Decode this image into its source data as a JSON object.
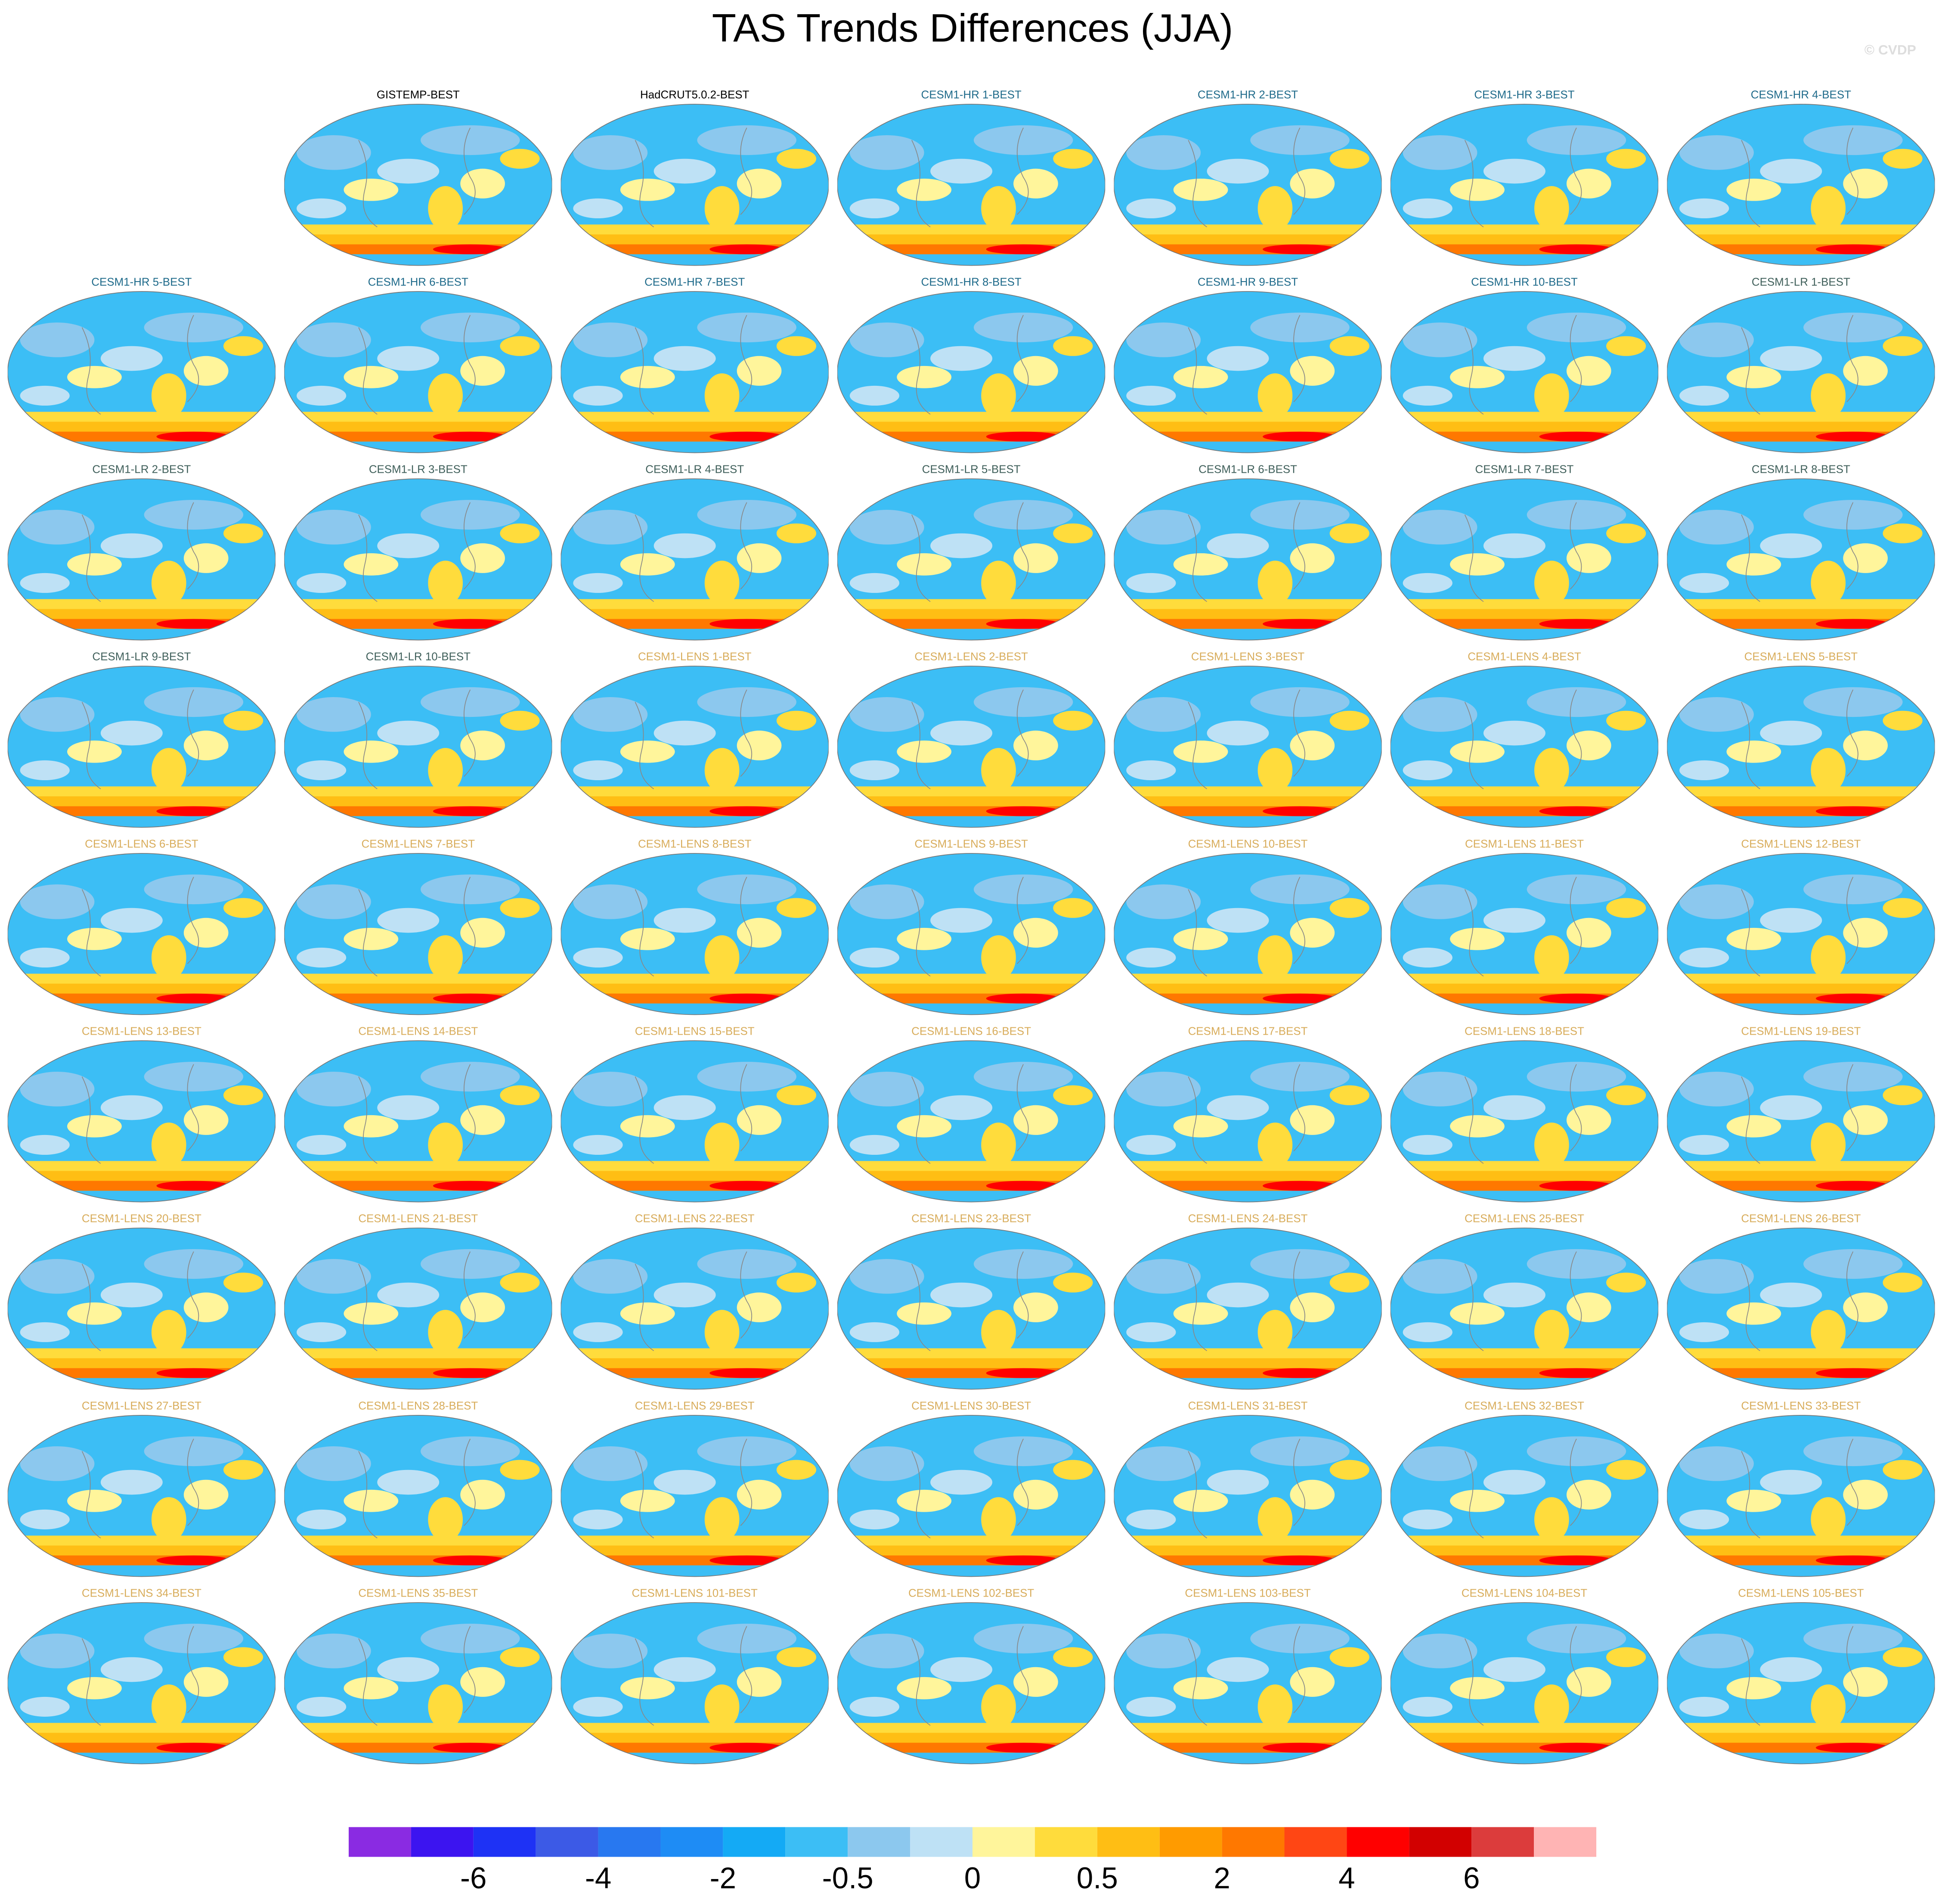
{
  "title": "TAS Trends Differences (JJA)",
  "watermark": "© CVDP",
  "panels": [
    {
      "title": "GISTEMP-BEST",
      "color": "#000000"
    },
    {
      "title": "HadCRUT5.0.2-BEST",
      "color": "#000000"
    },
    {
      "title": "CESM1-HR 1-BEST",
      "color": "#1e6a8a"
    },
    {
      "title": "CESM1-HR 2-BEST",
      "color": "#1e6a8a"
    },
    {
      "title": "CESM1-HR 3-BEST",
      "color": "#1e6a8a"
    },
    {
      "title": "CESM1-HR 4-BEST",
      "color": "#1e6a8a"
    },
    {
      "title": "CESM1-HR 5-BEST",
      "color": "#1e6a8a"
    },
    {
      "title": "CESM1-HR 6-BEST",
      "color": "#1e6a8a"
    },
    {
      "title": "CESM1-HR 7-BEST",
      "color": "#1e6a8a"
    },
    {
      "title": "CESM1-HR 8-BEST",
      "color": "#1e6a8a"
    },
    {
      "title": "CESM1-HR 9-BEST",
      "color": "#1e6a8a"
    },
    {
      "title": "CESM1-HR 10-BEST",
      "color": "#1e6a8a"
    },
    {
      "title": "CESM1-LR 1-BEST",
      "color": "#3f5f5a"
    },
    {
      "title": "CESM1-LR 2-BEST",
      "color": "#3f5f5a"
    },
    {
      "title": "CESM1-LR 3-BEST",
      "color": "#3f5f5a"
    },
    {
      "title": "CESM1-LR 4-BEST",
      "color": "#3f5f5a"
    },
    {
      "title": "CESM1-LR 5-BEST",
      "color": "#3f5f5a"
    },
    {
      "title": "CESM1-LR 6-BEST",
      "color": "#3f5f5a"
    },
    {
      "title": "CESM1-LR 7-BEST",
      "color": "#3f5f5a"
    },
    {
      "title": "CESM1-LR 8-BEST",
      "color": "#3f5f5a"
    },
    {
      "title": "CESM1-LR 9-BEST",
      "color": "#3f5f5a"
    },
    {
      "title": "CESM1-LR 10-BEST",
      "color": "#3f5f5a"
    },
    {
      "title": "CESM1-LENS 1-BEST",
      "color": "#d8ac5a"
    },
    {
      "title": "CESM1-LENS 2-BEST",
      "color": "#d8ac5a"
    },
    {
      "title": "CESM1-LENS 3-BEST",
      "color": "#d8ac5a"
    },
    {
      "title": "CESM1-LENS 4-BEST",
      "color": "#d8ac5a"
    },
    {
      "title": "CESM1-LENS 5-BEST",
      "color": "#d8ac5a"
    },
    {
      "title": "CESM1-LENS 6-BEST",
      "color": "#d8ac5a"
    },
    {
      "title": "CESM1-LENS 7-BEST",
      "color": "#d8ac5a"
    },
    {
      "title": "CESM1-LENS 8-BEST",
      "color": "#d8ac5a"
    },
    {
      "title": "CESM1-LENS 9-BEST",
      "color": "#d8ac5a"
    },
    {
      "title": "CESM1-LENS 10-BEST",
      "color": "#d8ac5a"
    },
    {
      "title": "CESM1-LENS 11-BEST",
      "color": "#d8ac5a"
    },
    {
      "title": "CESM1-LENS 12-BEST",
      "color": "#d8ac5a"
    },
    {
      "title": "CESM1-LENS 13-BEST",
      "color": "#d8ac5a"
    },
    {
      "title": "CESM1-LENS 14-BEST",
      "color": "#d8ac5a"
    },
    {
      "title": "CESM1-LENS 15-BEST",
      "color": "#d8ac5a"
    },
    {
      "title": "CESM1-LENS 16-BEST",
      "color": "#d8ac5a"
    },
    {
      "title": "CESM1-LENS 17-BEST",
      "color": "#d8ac5a"
    },
    {
      "title": "CESM1-LENS 18-BEST",
      "color": "#d8ac5a"
    },
    {
      "title": "CESM1-LENS 19-BEST",
      "color": "#d8ac5a"
    },
    {
      "title": "CESM1-LENS 20-BEST",
      "color": "#d8ac5a"
    },
    {
      "title": "CESM1-LENS 21-BEST",
      "color": "#d8ac5a"
    },
    {
      "title": "CESM1-LENS 22-BEST",
      "color": "#d8ac5a"
    },
    {
      "title": "CESM1-LENS 23-BEST",
      "color": "#d8ac5a"
    },
    {
      "title": "CESM1-LENS 24-BEST",
      "color": "#d8ac5a"
    },
    {
      "title": "CESM1-LENS 25-BEST",
      "color": "#d8ac5a"
    },
    {
      "title": "CESM1-LENS 26-BEST",
      "color": "#d8ac5a"
    },
    {
      "title": "CESM1-LENS 27-BEST",
      "color": "#d8ac5a"
    },
    {
      "title": "CESM1-LENS 28-BEST",
      "color": "#d8ac5a"
    },
    {
      "title": "CESM1-LENS 29-BEST",
      "color": "#d8ac5a"
    },
    {
      "title": "CESM1-LENS 30-BEST",
      "color": "#d8ac5a"
    },
    {
      "title": "CESM1-LENS 31-BEST",
      "color": "#d8ac5a"
    },
    {
      "title": "CESM1-LENS 32-BEST",
      "color": "#d8ac5a"
    },
    {
      "title": "CESM1-LENS 33-BEST",
      "color": "#d8ac5a"
    },
    {
      "title": "CESM1-LENS 34-BEST",
      "color": "#d8ac5a"
    },
    {
      "title": "CESM1-LENS 35-BEST",
      "color": "#d8ac5a"
    },
    {
      "title": "CESM1-LENS 101-BEST",
      "color": "#d8ac5a"
    },
    {
      "title": "CESM1-LENS 102-BEST",
      "color": "#d8ac5a"
    },
    {
      "title": "CESM1-LENS 103-BEST",
      "color": "#d8ac5a"
    },
    {
      "title": "CESM1-LENS 104-BEST",
      "color": "#d8ac5a"
    },
    {
      "title": "CESM1-LENS 105-BEST",
      "color": "#d8ac5a"
    }
  ],
  "colorbar": {
    "colors": [
      "#8a2be2",
      "#3c14f0",
      "#1e32f5",
      "#3c5ae6",
      "#2878f0",
      "#1e8cf5",
      "#14aaf5",
      "#3cbef5",
      "#8cc8ee",
      "#bee1f5",
      "#fff59b",
      "#ffdc3c",
      "#ffbe14",
      "#ff9b00",
      "#ff7800",
      "#ff4614",
      "#ff0000",
      "#d20000",
      "#dc3c3c",
      "#ffb4b4"
    ],
    "labels": [
      -6,
      -4,
      -2,
      -0.5,
      0,
      0.5,
      2,
      4,
      6
    ]
  }
}
